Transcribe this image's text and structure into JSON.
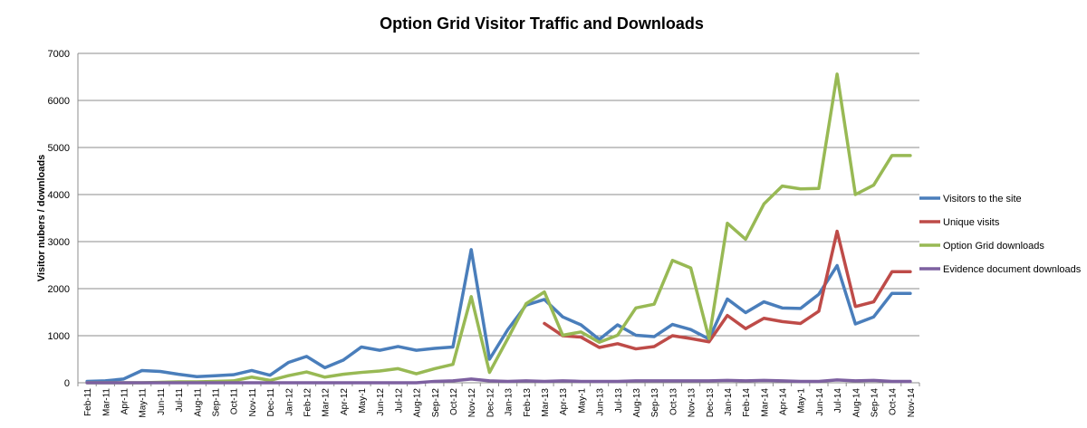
{
  "chart_data": {
    "type": "line",
    "title": "Option Grid Visitor Traffic and Downloads",
    "ylabel": "Visitor nubers / downloads",
    "xlabel": "",
    "ylim": [
      0,
      7000
    ],
    "yticks": [
      0,
      1000,
      2000,
      3000,
      4000,
      5000,
      6000,
      7000
    ],
    "grid": true,
    "legend_position": "right",
    "categories": [
      "Feb-11",
      "Mar-11",
      "Apr-11",
      "May-11",
      "Jun-11",
      "Jul-11",
      "Aug-11",
      "Sep-11",
      "Oct-11",
      "Nov-11",
      "Dec-11",
      "Jan-12",
      "Feb-12",
      "Mar-12",
      "Apr-12",
      "May-1",
      "Jun-12",
      "Jul-12",
      "Aug-12",
      "Sep-12",
      "Oct-12",
      "Nov-12",
      "Dec-12",
      "Jan-13",
      "Feb-13",
      "Mar-13",
      "Apr-13",
      "May-1",
      "Jun-13",
      "Jul-13",
      "Aug-13",
      "Sep-13",
      "Oct-13",
      "Nov-13",
      "Dec-13",
      "Jan-14",
      "Feb-14",
      "Mar-14",
      "Apr-14",
      "May-1",
      "Jun-14",
      "Jul-14",
      "Aug-14",
      "Sep-14",
      "Oct-14",
      "Nov-14"
    ],
    "series": [
      {
        "name": "Visitors to the site",
        "color": "#4a7ebb",
        "values": [
          30,
          40,
          80,
          260,
          240,
          180,
          130,
          150,
          170,
          260,
          160,
          430,
          560,
          320,
          480,
          760,
          690,
          770,
          690,
          730,
          760,
          2830,
          500,
          1130,
          1650,
          1770,
          1400,
          1230,
          920,
          1230,
          1010,
          980,
          1240,
          1130,
          930,
          1780,
          1490,
          1720,
          1590,
          1580,
          1880,
          2490,
          1250,
          1400,
          1900,
          1900
        ]
      },
      {
        "name": "Unique visits",
        "color": "#be4b48",
        "values": [
          null,
          null,
          null,
          null,
          null,
          null,
          null,
          null,
          null,
          null,
          null,
          null,
          null,
          null,
          null,
          null,
          null,
          null,
          null,
          null,
          null,
          null,
          null,
          null,
          null,
          1260,
          1000,
          970,
          750,
          830,
          720,
          770,
          1000,
          940,
          870,
          1430,
          1150,
          1370,
          1300,
          1260,
          1520,
          3220,
          1620,
          1720,
          2360,
          2360
        ]
      },
      {
        "name": "Option Grid downloads",
        "color": "#98b954",
        "values": [
          0,
          0,
          0,
          0,
          10,
          20,
          20,
          30,
          40,
          120,
          50,
          150,
          230,
          120,
          180,
          220,
          250,
          300,
          190,
          300,
          390,
          1830,
          220,
          940,
          1680,
          1930,
          1010,
          1080,
          860,
          1010,
          1590,
          1670,
          2600,
          2440,
          940,
          3390,
          3050,
          3800,
          4180,
          4120,
          4130,
          6560,
          4000,
          4200,
          4830,
          4830
        ]
      },
      {
        "name": "Evidence document downloads",
        "color": "#7d60a0",
        "values": [
          0,
          0,
          0,
          0,
          0,
          0,
          0,
          0,
          0,
          0,
          0,
          0,
          0,
          0,
          0,
          0,
          0,
          0,
          0,
          30,
          40,
          80,
          40,
          30,
          40,
          30,
          40,
          30,
          30,
          30,
          40,
          40,
          40,
          40,
          40,
          50,
          40,
          50,
          40,
          30,
          30,
          60,
          40,
          50,
          30,
          30
        ]
      }
    ]
  }
}
